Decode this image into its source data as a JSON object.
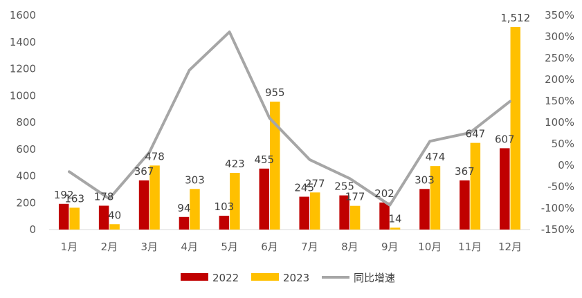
{
  "chart_data": {
    "type": "bar",
    "categories": [
      "1月",
      "2月",
      "3月",
      "4月",
      "5月",
      "6月",
      "7月",
      "8月",
      "9月",
      "10月",
      "11月",
      "12月"
    ],
    "series": [
      {
        "name": "2022",
        "type": "bar",
        "axis": "left",
        "color": "#C00000",
        "values": [
          192,
          178,
          367,
          94,
          103,
          455,
          245,
          255,
          202,
          303,
          367,
          607
        ],
        "labels": [
          "192",
          "178",
          "367",
          "94",
          "103",
          "455",
          "245",
          "255",
          "202",
          "303",
          "367",
          "607"
        ]
      },
      {
        "name": "2023",
        "type": "bar",
        "axis": "left",
        "color": "#FFC000",
        "values": [
          163,
          40,
          478,
          303,
          423,
          955,
          277,
          177,
          14,
          474,
          647,
          1512
        ],
        "labels": [
          "163",
          "40",
          "478",
          "303",
          "423",
          "955",
          "277",
          "177",
          "14",
          "474",
          "647",
          "1,512"
        ]
      },
      {
        "name": "同比增速",
        "type": "line",
        "axis": "right",
        "color": "#A6A6A6",
        "values": [
          -15,
          -78,
          30,
          222,
          311,
          110,
          13,
          -31,
          -93,
          56,
          76,
          149
        ]
      }
    ],
    "y_left": {
      "min": 0,
      "max": 1600,
      "step": 200,
      "ticks": [
        "0",
        "200",
        "400",
        "600",
        "800",
        "1000",
        "1200",
        "1400",
        "1600"
      ]
    },
    "y_right": {
      "min": -150,
      "max": 350,
      "step": 50,
      "ticks": [
        "-150%",
        "-100%",
        "-50%",
        "0%",
        "50%",
        "100%",
        "150%",
        "200%",
        "250%",
        "300%",
        "350%"
      ]
    },
    "legend": {
      "position": "bottom",
      "items": [
        "2022",
        "2023",
        "同比增速"
      ]
    }
  }
}
